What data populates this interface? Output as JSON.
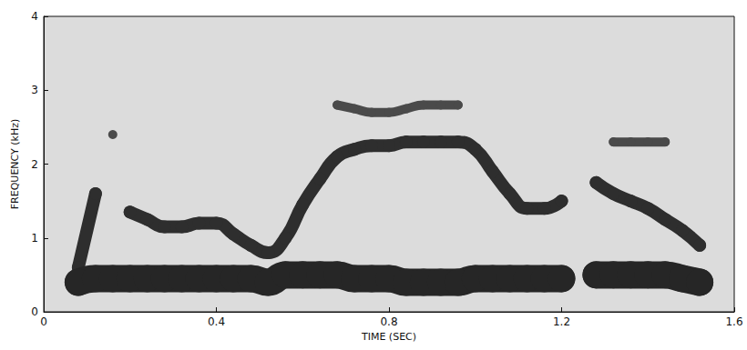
{
  "chart_data": {
    "type": "line",
    "x_label": "TIME (SEC)",
    "y_label": "FREQUENCY (kHz)",
    "x": [
      0.08,
      0.12,
      0.16,
      0.2,
      0.24,
      0.28,
      0.32,
      0.36,
      0.4,
      0.44,
      0.48,
      0.52,
      0.56,
      0.6,
      0.64,
      0.68,
      0.72,
      0.76,
      0.8,
      0.84,
      0.88,
      0.92,
      0.96,
      1.0,
      1.04,
      1.08,
      1.12,
      1.16,
      1.2,
      1.24,
      1.28,
      1.32,
      1.36,
      1.4,
      1.44,
      1.48,
      1.52
    ],
    "series": [
      {
        "color": "#262626",
        "marker": "circle",
        "values": [
          0.4,
          0.45,
          0.45,
          0.45,
          0.45,
          0.45,
          0.45,
          0.45,
          0.45,
          0.45,
          0.45,
          0.4,
          0.5,
          0.5,
          0.5,
          0.5,
          0.45,
          0.45,
          0.45,
          0.4,
          0.4,
          0.4,
          0.4,
          0.45,
          0.45,
          0.45,
          0.45,
          0.45,
          0.45,
          null,
          0.5,
          0.5,
          0.5,
          0.5,
          0.5,
          0.45,
          0.4
        ]
      },
      {
        "color": "#2e2e2e",
        "marker": "circle",
        "values": [
          0.6,
          1.6,
          null,
          1.35,
          1.25,
          1.15,
          1.15,
          1.2,
          1.2,
          1.05,
          0.9,
          0.8,
          1.0,
          1.45,
          1.8,
          2.1,
          2.2,
          2.25,
          2.25,
          2.3,
          2.3,
          2.3,
          2.3,
          2.2,
          1.9,
          1.6,
          1.4,
          1.4,
          1.5,
          null,
          1.75,
          1.6,
          1.5,
          1.4,
          1.25,
          1.1,
          0.9
        ]
      },
      {
        "color": "#4a4a4a",
        "marker": "circle",
        "values": [
          null,
          null,
          2.4,
          null,
          null,
          null,
          null,
          null,
          null,
          null,
          null,
          null,
          null,
          null,
          null,
          2.8,
          2.75,
          2.7,
          2.7,
          2.75,
          2.8,
          2.8,
          2.8,
          null,
          null,
          null,
          null,
          null,
          null,
          null,
          null,
          2.3,
          2.3,
          2.3,
          2.3,
          null,
          null
        ]
      }
    ],
    "xlim": [
      0,
      1.6
    ],
    "xticks": [
      0,
      0.4,
      0.8,
      1.2,
      1.6
    ],
    "ylim": [
      0,
      4
    ],
    "yticks": [
      0,
      1,
      2,
      3,
      4
    ],
    "grid": false
  }
}
